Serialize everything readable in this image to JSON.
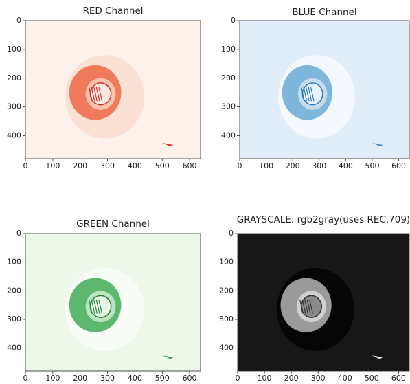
{
  "chart_data": [
    {
      "type": "image",
      "title": "RED Channel",
      "colormap": "Reds",
      "xlim": [
        0,
        640
      ],
      "ylim": [
        480,
        0
      ],
      "xticks": [
        0,
        100,
        200,
        300,
        400,
        500,
        600
      ],
      "yticks": [
        0,
        100,
        200,
        300,
        400
      ]
    },
    {
      "type": "image",
      "title": "BLUE Channel",
      "colormap": "Blues",
      "xlim": [
        0,
        640
      ],
      "ylim": [
        480,
        0
      ],
      "xticks": [
        0,
        100,
        200,
        300,
        400,
        500,
        600
      ],
      "yticks": [
        0,
        100,
        200,
        300,
        400
      ]
    },
    {
      "type": "image",
      "title": "GREEN Channel",
      "colormap": "Greens",
      "xlim": [
        0,
        640
      ],
      "ylim": [
        480,
        0
      ],
      "xticks": [
        0,
        100,
        200,
        300,
        400,
        500,
        600
      ],
      "yticks": [
        0,
        100,
        200,
        300,
        400
      ]
    },
    {
      "type": "image",
      "title": "GRAYSCALE: rgb2gray(uses REC.709)",
      "colormap": "gray",
      "xlim": [
        0,
        640
      ],
      "ylim": [
        480,
        0
      ],
      "xticks": [
        0,
        100,
        200,
        300,
        400,
        500,
        600
      ],
      "yticks": [
        0,
        100,
        200,
        300,
        400
      ]
    }
  ]
}
